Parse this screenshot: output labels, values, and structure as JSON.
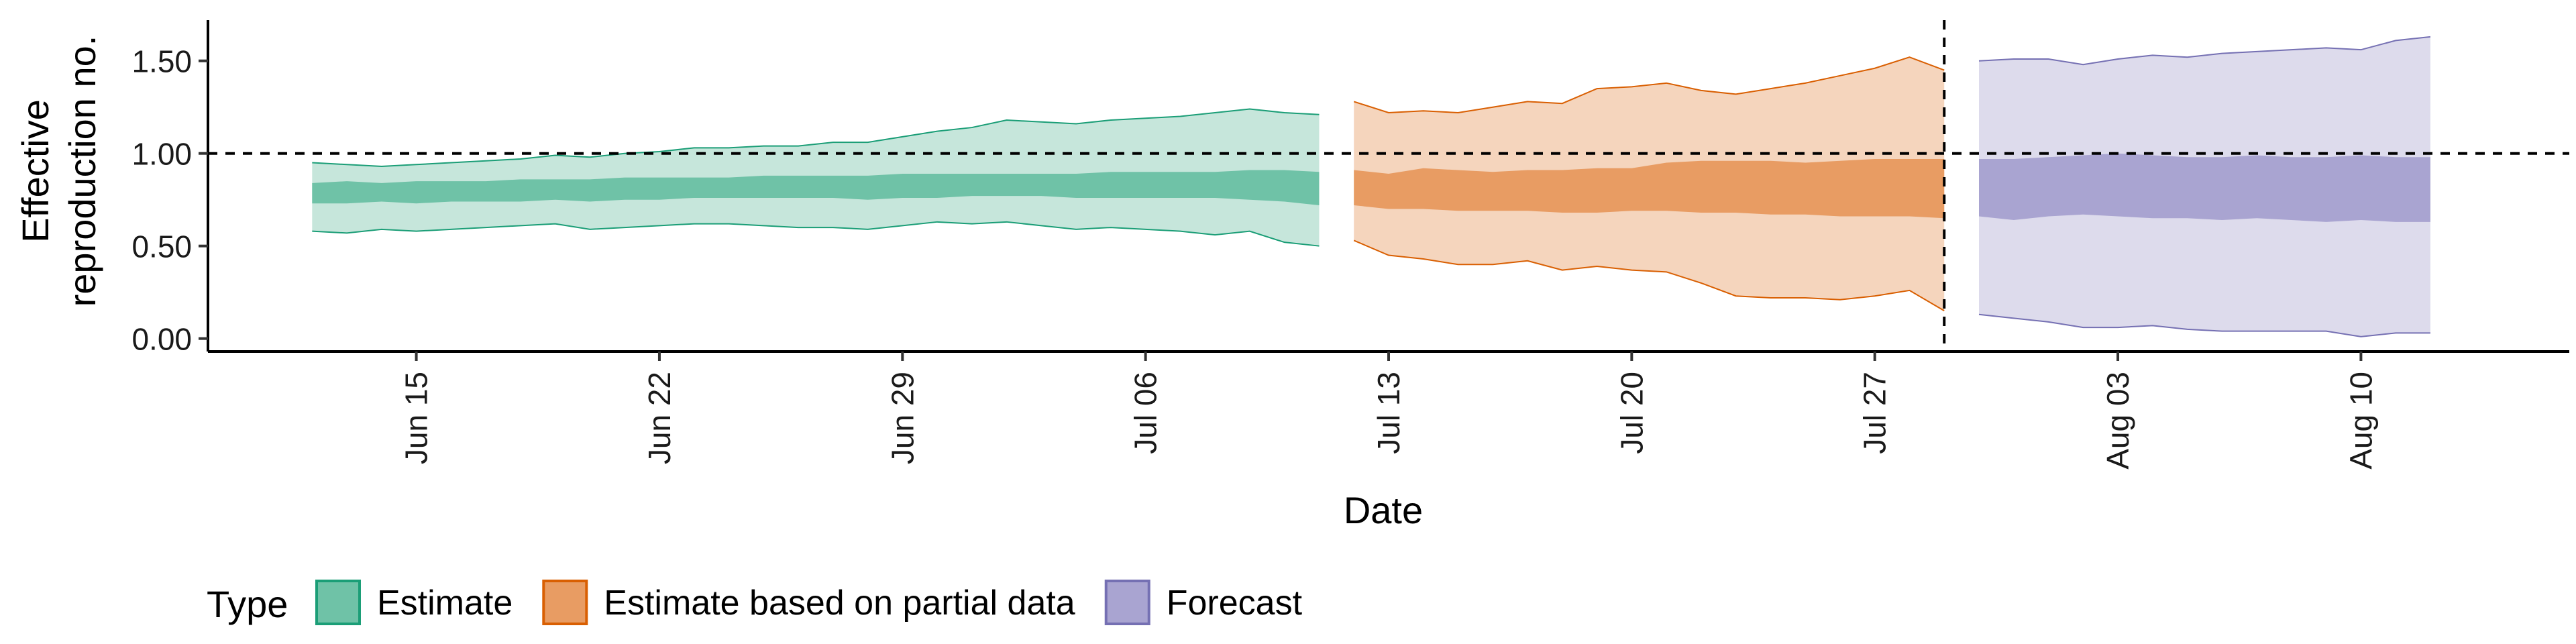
{
  "chart_data": {
    "type": "area",
    "xlabel": "Date",
    "ylabel_lines": [
      "Effective",
      "reproduction no."
    ],
    "x_ticks": [
      {
        "date": "2020-06-15",
        "label": "Jun 15"
      },
      {
        "date": "2020-06-22",
        "label": "Jun 22"
      },
      {
        "date": "2020-06-29",
        "label": "Jun 29"
      },
      {
        "date": "2020-07-06",
        "label": "Jul 06"
      },
      {
        "date": "2020-07-13",
        "label": "Jul 13"
      },
      {
        "date": "2020-07-20",
        "label": "Jul 20"
      },
      {
        "date": "2020-07-27",
        "label": "Jul 27"
      },
      {
        "date": "2020-08-03",
        "label": "Aug 03"
      },
      {
        "date": "2020-08-10",
        "label": "Aug 10"
      }
    ],
    "y_ticks": [
      {
        "value": 0,
        "label": "0.00"
      },
      {
        "value": 0.5,
        "label": "0.50"
      },
      {
        "value": 1,
        "label": "1.00"
      },
      {
        "value": 1.5,
        "label": "1.50"
      }
    ],
    "xlim": [
      "2020-06-09",
      "2020-08-16"
    ],
    "ylim": [
      -0.07,
      1.72
    ],
    "hlines": [
      {
        "y": 1.0,
        "style": "dashed"
      }
    ],
    "vlines": [
      {
        "x": "2020-07-29",
        "style": "dashed"
      }
    ],
    "legend": {
      "title": "Type",
      "position": "bottom-left"
    },
    "series": [
      {
        "name": "Estimate",
        "fill": "#6fc2a7",
        "outer_fill": "#c6e6db",
        "stroke": "#1b9e77",
        "x": [
          "2020-06-12",
          "2020-06-13",
          "2020-06-14",
          "2020-06-15",
          "2020-06-16",
          "2020-06-17",
          "2020-06-18",
          "2020-06-19",
          "2020-06-20",
          "2020-06-21",
          "2020-06-22",
          "2020-06-23",
          "2020-06-24",
          "2020-06-25",
          "2020-06-26",
          "2020-06-27",
          "2020-06-28",
          "2020-06-29",
          "2020-06-30",
          "2020-07-01",
          "2020-07-02",
          "2020-07-03",
          "2020-07-04",
          "2020-07-05",
          "2020-07-06",
          "2020-07-07",
          "2020-07-08",
          "2020-07-09",
          "2020-07-10",
          "2020-07-11"
        ],
        "lower90": [
          0.58,
          0.57,
          0.59,
          0.58,
          0.59,
          0.6,
          0.61,
          0.62,
          0.59,
          0.6,
          0.61,
          0.62,
          0.62,
          0.61,
          0.6,
          0.6,
          0.59,
          0.61,
          0.63,
          0.62,
          0.63,
          0.61,
          0.59,
          0.6,
          0.59,
          0.58,
          0.56,
          0.58,
          0.52,
          0.5
        ],
        "upper90": [
          0.95,
          0.94,
          0.93,
          0.94,
          0.95,
          0.96,
          0.97,
          0.99,
          0.98,
          1.0,
          1.01,
          1.03,
          1.03,
          1.04,
          1.04,
          1.06,
          1.06,
          1.09,
          1.12,
          1.14,
          1.18,
          1.17,
          1.16,
          1.18,
          1.19,
          1.2,
          1.22,
          1.24,
          1.22,
          1.21
        ],
        "lower50": [
          0.73,
          0.73,
          0.74,
          0.73,
          0.74,
          0.74,
          0.74,
          0.75,
          0.74,
          0.75,
          0.75,
          0.76,
          0.76,
          0.76,
          0.76,
          0.76,
          0.75,
          0.76,
          0.76,
          0.77,
          0.77,
          0.77,
          0.76,
          0.76,
          0.76,
          0.76,
          0.76,
          0.75,
          0.74,
          0.72
        ],
        "upper50": [
          0.84,
          0.85,
          0.84,
          0.85,
          0.85,
          0.85,
          0.86,
          0.86,
          0.86,
          0.87,
          0.87,
          0.87,
          0.87,
          0.88,
          0.88,
          0.88,
          0.88,
          0.89,
          0.89,
          0.89,
          0.89,
          0.89,
          0.89,
          0.9,
          0.9,
          0.9,
          0.9,
          0.91,
          0.91,
          0.9
        ]
      },
      {
        "name": "Estimate based on partial data",
        "fill": "#e89c63",
        "outer_fill": "#f5d5bd",
        "stroke": "#d95f02",
        "x": [
          "2020-07-12",
          "2020-07-13",
          "2020-07-14",
          "2020-07-15",
          "2020-07-16",
          "2020-07-17",
          "2020-07-18",
          "2020-07-19",
          "2020-07-20",
          "2020-07-21",
          "2020-07-22",
          "2020-07-23",
          "2020-07-24",
          "2020-07-25",
          "2020-07-26",
          "2020-07-27",
          "2020-07-28",
          "2020-07-29"
        ],
        "lower90": [
          0.53,
          0.45,
          0.43,
          0.4,
          0.4,
          0.42,
          0.37,
          0.39,
          0.37,
          0.36,
          0.3,
          0.23,
          0.22,
          0.22,
          0.21,
          0.23,
          0.26,
          0.15
        ],
        "upper90": [
          1.28,
          1.22,
          1.23,
          1.22,
          1.25,
          1.28,
          1.27,
          1.35,
          1.36,
          1.38,
          1.34,
          1.32,
          1.35,
          1.38,
          1.42,
          1.46,
          1.52,
          1.45
        ],
        "lower50": [
          0.72,
          0.7,
          0.7,
          0.69,
          0.69,
          0.69,
          0.68,
          0.68,
          0.69,
          0.69,
          0.68,
          0.68,
          0.67,
          0.67,
          0.66,
          0.66,
          0.66,
          0.65
        ],
        "upper50": [
          0.91,
          0.89,
          0.92,
          0.91,
          0.9,
          0.91,
          0.91,
          0.92,
          0.92,
          0.95,
          0.96,
          0.96,
          0.96,
          0.95,
          0.96,
          0.97,
          0.97,
          0.97
        ]
      },
      {
        "name": "Forecast",
        "fill": "#a9a4d1",
        "outer_fill": "#dddbec",
        "stroke": "#7570b3",
        "x": [
          "2020-07-30",
          "2020-07-31",
          "2020-08-01",
          "2020-08-02",
          "2020-08-03",
          "2020-08-04",
          "2020-08-05",
          "2020-08-06",
          "2020-08-07",
          "2020-08-08",
          "2020-08-09",
          "2020-08-10",
          "2020-08-11",
          "2020-08-12"
        ],
        "lower90": [
          0.13,
          0.11,
          0.09,
          0.06,
          0.06,
          0.07,
          0.05,
          0.04,
          0.04,
          0.04,
          0.04,
          0.01,
          0.03,
          0.03
        ],
        "upper90": [
          1.5,
          1.51,
          1.51,
          1.48,
          1.51,
          1.53,
          1.52,
          1.54,
          1.55,
          1.56,
          1.57,
          1.56,
          1.61,
          1.63
        ],
        "lower50": [
          0.66,
          0.64,
          0.66,
          0.67,
          0.66,
          0.65,
          0.65,
          0.64,
          0.65,
          0.64,
          0.63,
          0.64,
          0.63,
          0.63
        ],
        "upper50": [
          0.97,
          0.97,
          0.98,
          0.99,
          1.0,
          0.99,
          0.98,
          0.98,
          0.99,
          0.98,
          0.98,
          0.99,
          0.98,
          0.98
        ]
      }
    ]
  }
}
